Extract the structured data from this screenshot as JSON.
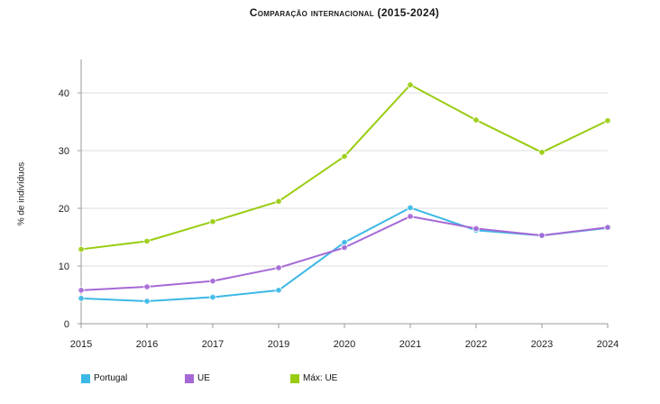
{
  "chart_data": {
    "type": "line",
    "title": "Comparação internacional (2015-2024)",
    "xlabel": "",
    "ylabel": "% de indivíduos",
    "categories": [
      "2015",
      "2016",
      "2017",
      "2019",
      "2020",
      "2021",
      "2022",
      "2023",
      "2024"
    ],
    "ylim": [
      0,
      45
    ],
    "yticks": [
      0,
      10,
      20,
      30,
      40
    ],
    "grid": true,
    "legend_position": "bottom-left",
    "series": [
      {
        "name": "Portugal",
        "color": "#3bb8e6",
        "values": [
          4.4,
          3.9,
          4.6,
          5.8,
          14.1,
          20.1,
          16.2,
          15.3,
          16.6
        ]
      },
      {
        "name": "UE",
        "color": "#a569d6",
        "values": [
          5.8,
          6.4,
          7.4,
          9.7,
          13.2,
          18.6,
          16.5,
          15.3,
          16.7
        ]
      },
      {
        "name": "Máx: UE",
        "color": "#99cc11",
        "values": [
          12.9,
          14.3,
          17.7,
          21.2,
          29.0,
          41.4,
          35.3,
          29.7,
          35.2
        ]
      }
    ]
  }
}
